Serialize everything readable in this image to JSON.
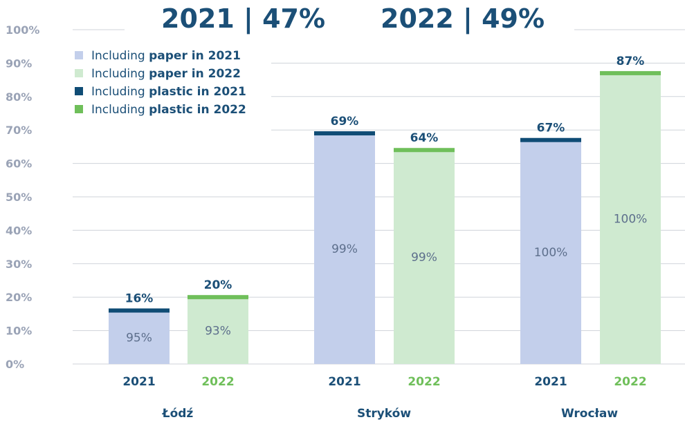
{
  "headline": {
    "left": "2021 | 47%",
    "right": "2022 | 49%"
  },
  "legend": [
    {
      "prefix": "Including ",
      "bold": "paper in 2021",
      "color": "#c3cfeb"
    },
    {
      "prefix": "Including ",
      "bold": "paper in 2022",
      "color": "#cfead0"
    },
    {
      "prefix": "Including ",
      "bold": "plastic in 2021",
      "color": "#0f4c75"
    },
    {
      "prefix": "Including ",
      "bold": "plastic in 2022",
      "color": "#6fbf5a"
    }
  ],
  "colors": {
    "bar_2021": "#c3cfeb",
    "bar_2022": "#cfead0",
    "cap_2021": "#0f4c75",
    "cap_2022": "#6fbf5a",
    "year_2021_text": "#1b4f77",
    "year_2022_text": "#6fbf5a"
  },
  "chart_data": {
    "type": "bar",
    "ylim": [
      0,
      100
    ],
    "yticks": [
      "0%",
      "10%",
      "20%",
      "30%",
      "40%",
      "50%",
      "60%",
      "70%",
      "80%",
      "90%",
      "100%"
    ],
    "groups": [
      {
        "city": "Łódź",
        "bars": [
          {
            "year": "2021",
            "value": 16,
            "label": "16%",
            "inner_label": "95%"
          },
          {
            "year": "2022",
            "value": 20,
            "label": "20%",
            "inner_label": "93%"
          }
        ]
      },
      {
        "city": "Stryków",
        "bars": [
          {
            "year": "2021",
            "value": 69,
            "label": "69%",
            "inner_label": "99%"
          },
          {
            "year": "2022",
            "value": 64,
            "label": "64%",
            "inner_label": "99%"
          }
        ]
      },
      {
        "city": "Wrocław",
        "bars": [
          {
            "year": "2021",
            "value": 67,
            "label": "67%",
            "inner_label": "100%"
          },
          {
            "year": "2022",
            "value": 87,
            "label": "87%",
            "inner_label": "100%"
          }
        ]
      }
    ]
  }
}
